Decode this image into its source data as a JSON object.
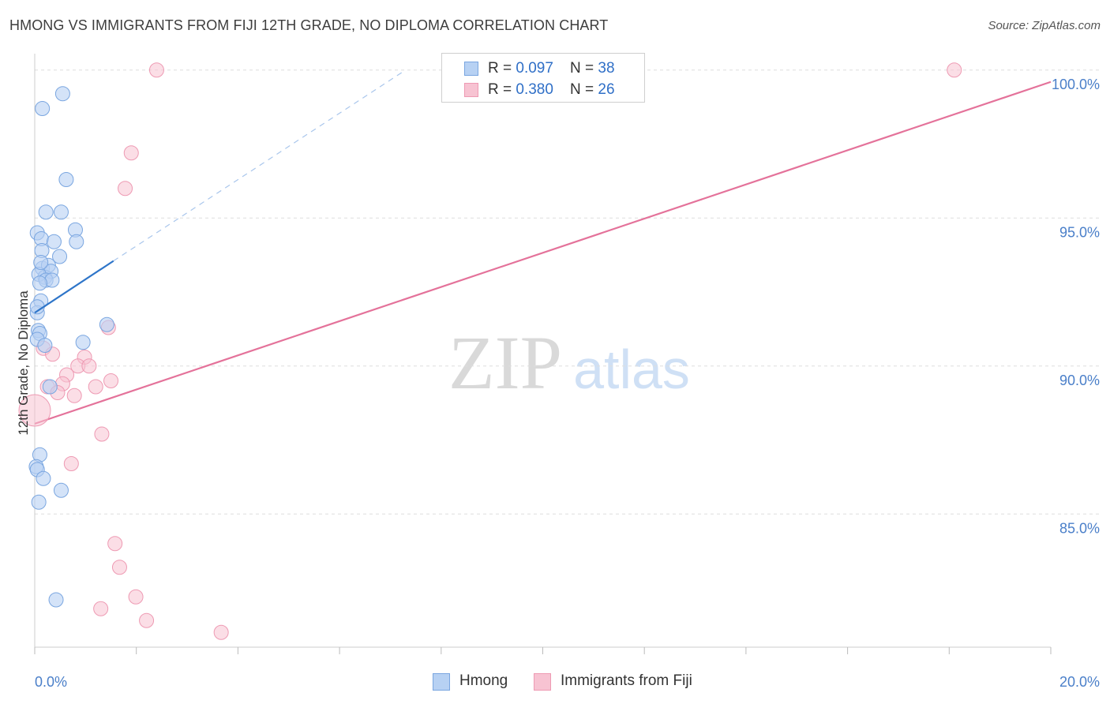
{
  "title": "HMONG VS IMMIGRANTS FROM FIJI 12TH GRADE, NO DIPLOMA CORRELATION CHART",
  "source": "Source: ZipAtlas.com",
  "watermark": {
    "zip": "ZIP",
    "atlas": "atlas"
  },
  "colors": {
    "blue_fill": "#b7d1f3",
    "blue_stroke": "#7aa6e0",
    "blue_line": "#2e75c9",
    "pink_fill": "#f7c3d2",
    "pink_stroke": "#ee9ab3",
    "pink_line": "#e4729a",
    "axis_label": "#4a7fc9",
    "grid": "#dedede"
  },
  "legend": {
    "rows": [
      {
        "r_label": "R = ",
        "r_value": "0.097",
        "n_label": "N = ",
        "n_value": "38"
      },
      {
        "r_label": "R = ",
        "r_value": "0.380",
        "n_label": "N = ",
        "n_value": "26"
      }
    ]
  },
  "bottom_legend": [
    "Hmong",
    "Immigrants from Fiji"
  ],
  "chart_data": {
    "type": "scatter",
    "title": "HMONG VS IMMIGRANTS FROM FIJI 12TH GRADE, NO DIPLOMA CORRELATION CHART",
    "xlabel": "",
    "ylabel": "12th Grade, No Diploma",
    "xlim": [
      0,
      20
    ],
    "ylim": [
      80.5,
      100.5
    ],
    "x_tick_labels": [
      "0.0%",
      "20.0%"
    ],
    "y_ticks": [
      85,
      90,
      95,
      100
    ],
    "y_tick_labels": [
      "85.0%",
      "90.0%",
      "95.0%",
      "100.0%"
    ],
    "grid": true,
    "legend_position": "top-center",
    "series": [
      {
        "name": "Hmong",
        "r": 0.097,
        "n": 38,
        "points": [
          [
            0.55,
            99.2
          ],
          [
            0.15,
            98.7
          ],
          [
            0.62,
            96.3
          ],
          [
            0.22,
            95.2
          ],
          [
            0.52,
            95.2
          ],
          [
            0.05,
            94.5
          ],
          [
            0.8,
            94.6
          ],
          [
            0.13,
            94.3
          ],
          [
            0.38,
            94.2
          ],
          [
            0.82,
            94.2
          ],
          [
            0.14,
            93.9
          ],
          [
            0.49,
            93.7
          ],
          [
            0.15,
            93.3
          ],
          [
            0.27,
            93.4
          ],
          [
            0.2,
            93.0
          ],
          [
            0.32,
            93.2
          ],
          [
            0.08,
            93.1
          ],
          [
            0.22,
            92.9
          ],
          [
            0.34,
            92.9
          ],
          [
            0.1,
            92.8
          ],
          [
            0.12,
            92.2
          ],
          [
            0.05,
            91.8
          ],
          [
            0.07,
            91.2
          ],
          [
            0.1,
            91.1
          ],
          [
            0.05,
            90.9
          ],
          [
            0.2,
            90.7
          ],
          [
            0.95,
            90.8
          ],
          [
            1.42,
            91.4
          ],
          [
            0.3,
            89.3
          ],
          [
            0.1,
            87.0
          ],
          [
            0.03,
            86.6
          ],
          [
            0.05,
            86.5
          ],
          [
            0.17,
            86.2
          ],
          [
            0.52,
            85.8
          ],
          [
            0.08,
            85.4
          ],
          [
            0.42,
            82.1
          ],
          [
            0.05,
            92.0
          ],
          [
            0.12,
            93.5
          ]
        ],
        "trend": {
          "x": [
            0,
            1.55
          ],
          "y": [
            91.8,
            93.55
          ]
        },
        "trend_extension": {
          "x": [
            1.55,
            7.3
          ],
          "y": [
            93.55,
            100.0
          ]
        }
      },
      {
        "name": "Immigrants from Fiji",
        "r": 0.38,
        "n": 26,
        "points": [
          [
            2.4,
            100.0
          ],
          [
            18.1,
            100.0
          ],
          [
            1.9,
            97.2
          ],
          [
            1.78,
            96.0
          ],
          [
            1.45,
            91.3
          ],
          [
            0.17,
            90.6
          ],
          [
            0.35,
            90.4
          ],
          [
            0.98,
            90.3
          ],
          [
            0.85,
            90.0
          ],
          [
            1.07,
            90.0
          ],
          [
            0.63,
            89.7
          ],
          [
            0.55,
            89.4
          ],
          [
            0.25,
            89.3
          ],
          [
            1.2,
            89.3
          ],
          [
            1.5,
            89.5
          ],
          [
            0.45,
            89.1
          ],
          [
            0.78,
            89.0
          ],
          [
            0.0,
            88.5
          ],
          [
            1.32,
            87.7
          ],
          [
            0.72,
            86.7
          ],
          [
            1.58,
            84.0
          ],
          [
            1.67,
            83.2
          ],
          [
            1.99,
            82.2
          ],
          [
            1.3,
            81.8
          ],
          [
            2.2,
            81.4
          ],
          [
            3.67,
            81.0
          ]
        ],
        "trend": {
          "x": [
            0,
            20
          ],
          "y": [
            88.05,
            99.6
          ]
        }
      }
    ]
  }
}
